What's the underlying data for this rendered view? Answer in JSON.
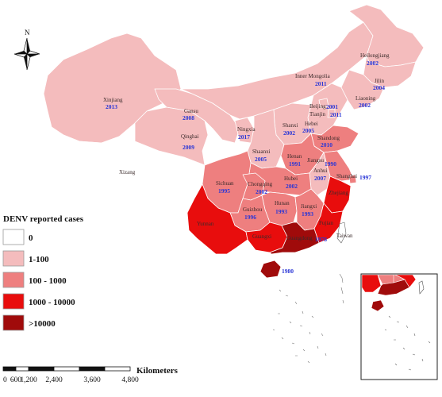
{
  "legend": {
    "title": "DENV reported cases",
    "classes": [
      {
        "label": "0",
        "color": "#ffffff"
      },
      {
        "label": "1-100",
        "color": "#f4bcbd"
      },
      {
        "label": "100 - 1000",
        "color": "#ee7f7f"
      },
      {
        "label": "1000 - 10000",
        "color": "#e80d0d"
      },
      {
        "label": ">10000",
        "color": "#a00b0b"
      }
    ]
  },
  "north_arrow": {
    "label": "N"
  },
  "scale_bar": {
    "ticks": [
      "0",
      "600",
      "1,200",
      "2,400",
      "3,600",
      "4,800"
    ],
    "unit": "Kilometers"
  },
  "provinces": [
    {
      "id": "xinjiang",
      "name": "Xinjiang",
      "year": "2013",
      "class": 1
    },
    {
      "id": "xizang",
      "name": "Xizang",
      "year": "",
      "class": 0
    },
    {
      "id": "qinghai",
      "name": "Qinghai",
      "year": "2009",
      "class": 1
    },
    {
      "id": "gansu",
      "name": "Gansu",
      "year": "2008",
      "class": 1
    },
    {
      "id": "ningxia",
      "name": "Ningxia",
      "year": "2017",
      "class": 1
    },
    {
      "id": "inner-mongolia",
      "name": "Inner Mongolia",
      "year": "2011",
      "class": 1
    },
    {
      "id": "heilongjiang",
      "name": "Heilongjiang",
      "year": "2002",
      "class": 1
    },
    {
      "id": "jilin",
      "name": "Jilin",
      "year": "2004",
      "class": 1
    },
    {
      "id": "liaoning",
      "name": "Liaoning",
      "year": "2002",
      "class": 1
    },
    {
      "id": "beijing",
      "name": "Beijing",
      "year": "2001",
      "class": 1
    },
    {
      "id": "tianjin",
      "name": "Tianjin",
      "year": "2011",
      "class": 1
    },
    {
      "id": "hebei",
      "name": "Hebei",
      "year": "2005",
      "class": 1
    },
    {
      "id": "shanxi",
      "name": "Shanxi",
      "year": "2002",
      "class": 1
    },
    {
      "id": "shaanxi",
      "name": "Shaanxi",
      "year": "2005",
      "class": 1
    },
    {
      "id": "shandong",
      "name": "Shandong",
      "year": "2010",
      "class": 2
    },
    {
      "id": "henan",
      "name": "Henan",
      "year": "1991",
      "class": 2
    },
    {
      "id": "jiangsu",
      "name": "Jiangsu",
      "year": "1990",
      "class": 2
    },
    {
      "id": "shanghai",
      "name": "Shanghai",
      "year": "1997",
      "class": 2
    },
    {
      "id": "anhui",
      "name": "Anhui",
      "year": "2007",
      "class": 1
    },
    {
      "id": "hubei",
      "name": "Hubei",
      "year": "2002",
      "class": 2
    },
    {
      "id": "sichuan",
      "name": "Sichuan",
      "year": "1995",
      "class": 2
    },
    {
      "id": "chongqing",
      "name": "Chongqing",
      "year": "2002",
      "class": 2
    },
    {
      "id": "zhejiang",
      "name": "Zhejiang",
      "year": "",
      "class": 3
    },
    {
      "id": "hunan",
      "name": "Hunan",
      "year": "1993",
      "class": 2
    },
    {
      "id": "jiangxi",
      "name": "Jiangxi",
      "year": "1993",
      "class": 2
    },
    {
      "id": "guizhou",
      "name": "Guizhou",
      "year": "1996",
      "class": 2
    },
    {
      "id": "yunnan",
      "name": "Yunnan",
      "year": "",
      "class": 3
    },
    {
      "id": "guangxi",
      "name": "Guangxi",
      "year": "",
      "class": 3
    },
    {
      "id": "guangdong",
      "name": "Guangdong",
      "year": "1978",
      "class": 4
    },
    {
      "id": "fujian",
      "name": "Fujian",
      "year": "",
      "class": 3
    },
    {
      "id": "hainan",
      "name": "",
      "year": "1980",
      "class": 4
    },
    {
      "id": "taiwan",
      "name": "Taiwan",
      "year": "",
      "class": 0
    }
  ]
}
